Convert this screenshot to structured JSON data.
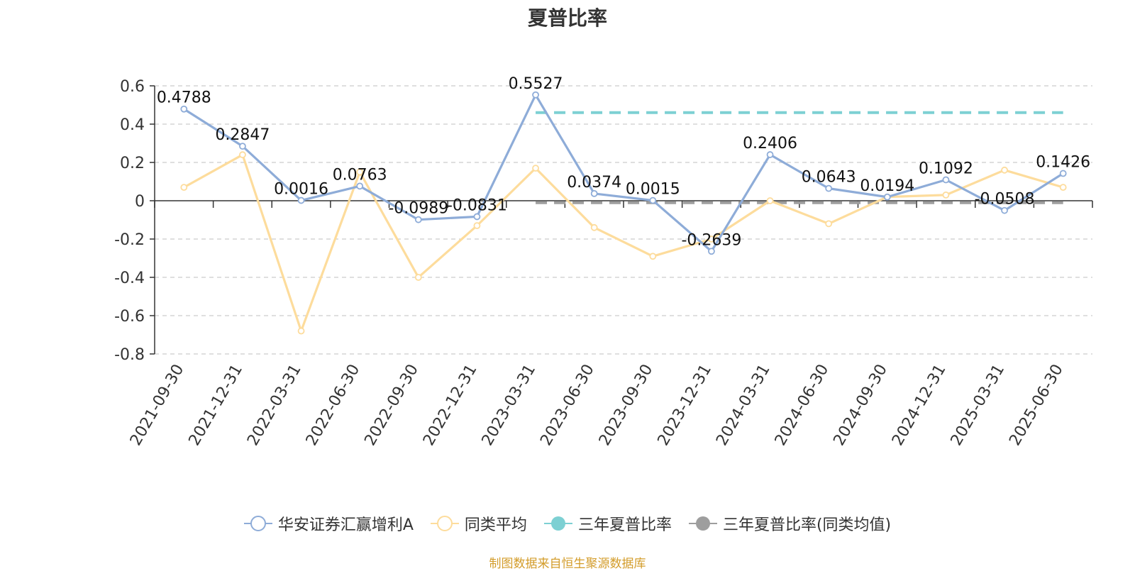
{
  "chart_data": {
    "type": "line",
    "title": "夏普比率",
    "categories": [
      "2021-09-30",
      "2021-12-31",
      "2022-03-31",
      "2022-06-30",
      "2022-09-30",
      "2022-12-31",
      "2023-03-31",
      "2023-06-30",
      "2023-09-30",
      "2023-12-31",
      "2024-03-31",
      "2024-06-30",
      "2024-09-30",
      "2024-12-31",
      "2025-03-31",
      "2025-06-30"
    ],
    "ylim": [
      -0.8,
      0.6
    ],
    "yticks": [
      0.6,
      0.4,
      0.2,
      0,
      -0.2,
      -0.4,
      -0.6,
      -0.8
    ],
    "ytick_labels": [
      "0.6",
      "0.4",
      "0.2",
      "0",
      "-0.2",
      "-0.4",
      "-0.6",
      "-0.8"
    ],
    "grid": true,
    "legend_position": "bottom",
    "series": [
      {
        "name": "华安证券汇赢增利A",
        "color": "#8eacd8",
        "values": [
          0.4788,
          0.2847,
          0.0016,
          0.0763,
          -0.0989,
          -0.0831,
          0.5527,
          0.0374,
          0.0015,
          -0.2639,
          0.2406,
          0.0643,
          0.0194,
          0.1092,
          -0.0508,
          0.1426
        ],
        "labels": [
          "0.4788",
          "0.2847",
          "0.0016",
          "0.0763",
          "-0.0989",
          "-0.0831",
          "0.5527",
          "0.0374",
          "0.0015",
          "-0.2639",
          "0.2406",
          "0.0643",
          "0.0194",
          "0.1092",
          "-0.0508",
          "0.1426"
        ]
      },
      {
        "name": "同类平均",
        "color": "#fddc9c",
        "values": [
          0.07,
          0.24,
          -0.68,
          0.15,
          -0.4,
          -0.13,
          0.17,
          -0.14,
          -0.29,
          -0.2,
          0.0,
          -0.12,
          0.02,
          0.03,
          0.16,
          0.07
        ]
      },
      {
        "name": "三年夏普比率",
        "color": "#7dd0d3",
        "type": "reference",
        "value": 0.46,
        "from_category": "2023-03-31",
        "to_category": "2025-06-30"
      },
      {
        "name": "三年夏普比率(同类均值)",
        "color": "#9e9e9e",
        "type": "reference",
        "value": -0.01,
        "from_category": "2023-03-31",
        "to_category": "2025-06-30"
      }
    ]
  },
  "footer": {
    "source": "制图数据来自恒生聚源数据库"
  }
}
